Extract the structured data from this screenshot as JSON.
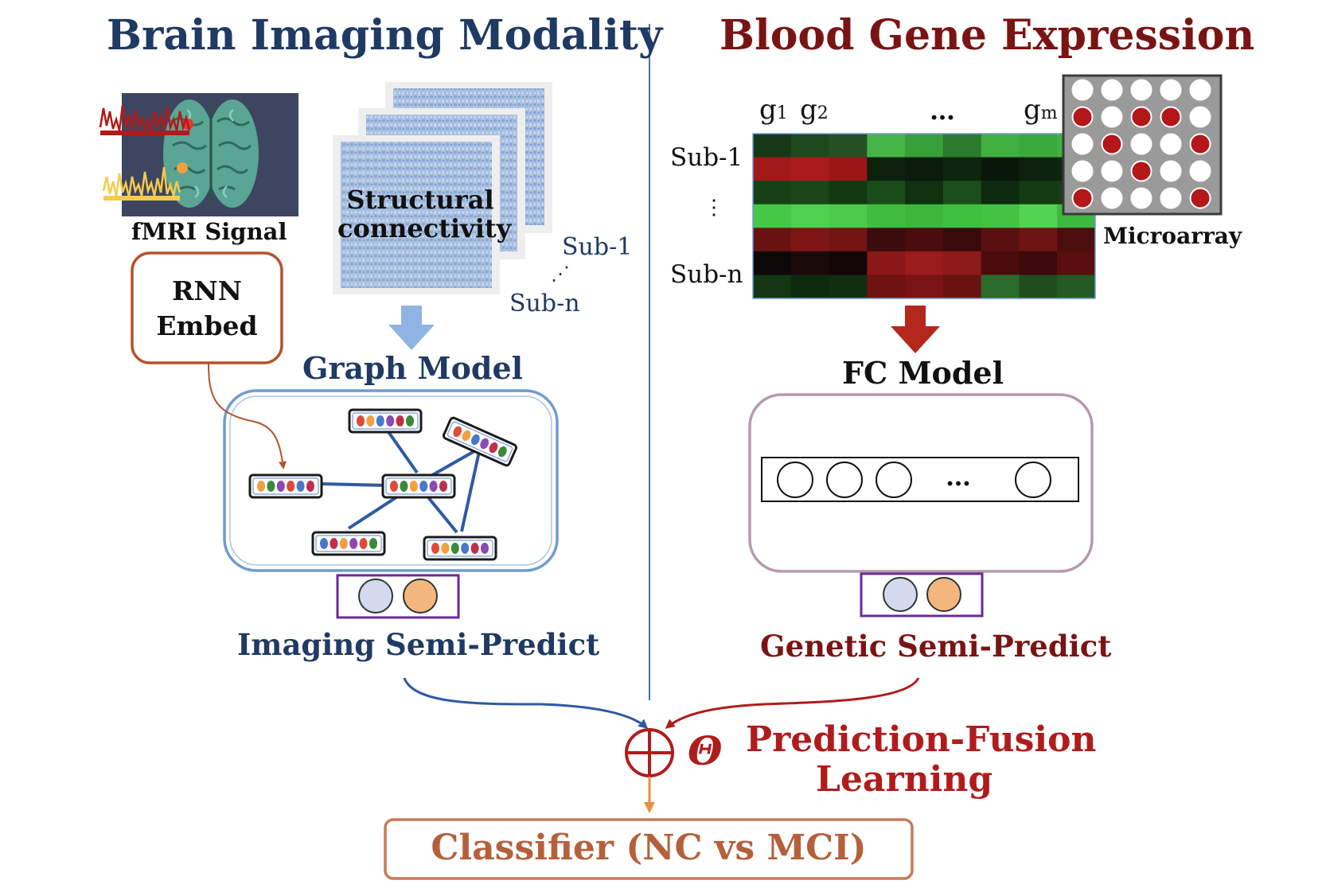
{
  "left_panel": {
    "title": "Brain Imaging Modality",
    "fmri_label": "fMRI Signal",
    "rnn_box": {
      "line1": "RNN",
      "line2": "Embed"
    },
    "sc_label": {
      "line1": "Structural",
      "line2": "connectivity"
    },
    "sub_first": "Sub-1",
    "sub_ellipsis": "⋰",
    "sub_last": "Sub-n",
    "graph_model_label": "Graph Model",
    "semi_predict_label": "Imaging Semi-Predict"
  },
  "right_panel": {
    "title": "Blood Gene Expression",
    "gene_labels": {
      "g1": "g",
      "g1_sub": "1",
      "g2": "g",
      "g2_sub": "2",
      "dots": "…",
      "gm": "g",
      "gm_sub": "m"
    },
    "row_labels": {
      "first": "Sub-1",
      "ellipsis": "⋮",
      "last": "Sub-n"
    },
    "microarray_label": "Microarray",
    "fc_model_label": "FC Model",
    "fc_dots": "…",
    "semi_predict_label": "Genetic Semi-Predict"
  },
  "fusion": {
    "theta": "Θ",
    "line1": "Prediction-Fusion",
    "line2": "Learning"
  },
  "classifier_label": "Classifier (NC vs MCI)",
  "colors": {
    "left_title": "#1f3a63",
    "right_title": "#7a1414",
    "fusion_red": "#b01c1c",
    "classifier_text": "#b5603a",
    "classifier_border": "#c87a55",
    "rnn_border": "#b5522a",
    "graph_box_border": "#6f9bd0",
    "fc_box_border": "#b59aaf",
    "pred_box_border": "#6a2a9a",
    "blue_circle": "#d3daf0",
    "orange_circle": "#f3b77e",
    "edge_blue": "#2f5aa5",
    "down_arrow_blue": "#8fb4e3",
    "down_arrow_red": "#b3271c",
    "orange_arrow": "#e8903a"
  },
  "heatmap": {
    "rows": [
      [
        "#163816",
        "#1e481e",
        "#245024",
        "#46b446",
        "#38a038",
        "#2c7a2c",
        "#40b040",
        "#3aa83a",
        "#44b044"
      ],
      [
        "#a31818",
        "#aa1a1a",
        "#9d1616",
        "#0c200c",
        "#0a1c0a",
        "#0e260e",
        "#081808",
        "#0c220c",
        "#0e260e"
      ],
      [
        "#164016",
        "#1a461a",
        "#123812",
        "#1a4c1a",
        "#103010",
        "#1c4e1c",
        "#0e2a0e",
        "#143a14",
        "#163e16"
      ],
      [
        "#45c845",
        "#50d050",
        "#4cca4c",
        "#40bc40",
        "#3cb63c",
        "#40c040",
        "#44c244",
        "#52d452",
        "#3eb83e"
      ],
      [
        "#6a1212",
        "#7e1616",
        "#741414",
        "#3c0c0c",
        "#4a0c0c",
        "#3a0a0a",
        "#5a1010",
        "#6e1414",
        "#4c0e0e"
      ],
      [
        "#0c0808",
        "#1a0a0a",
        "#120606",
        "#8a1818",
        "#9a1c1c",
        "#8c1a1a",
        "#4a0c0c",
        "#3c0a0a",
        "#5a0e0e"
      ],
      [
        "#143614",
        "#0e2a0e",
        "#102e10",
        "#6e1212",
        "#7a1414",
        "#681212",
        "#2a6a2a",
        "#1e4e1e",
        "#245a24"
      ]
    ]
  },
  "microarray": {
    "rows": [
      [
        0,
        0,
        0,
        0,
        0
      ],
      [
        1,
        0,
        1,
        1,
        0
      ],
      [
        0,
        1,
        0,
        0,
        1
      ],
      [
        0,
        0,
        1,
        0,
        0
      ],
      [
        1,
        0,
        0,
        0,
        1
      ]
    ]
  },
  "graph_nodes": [
    {
      "dots": [
        "#e04a3a",
        "#f0a040",
        "#4a78c8",
        "#8a4ab0",
        "#c0304a",
        "#3a8a3a"
      ]
    },
    {
      "dots": [
        "#e04a3a",
        "#f0a040",
        "#4a78c8",
        "#8a4ab0",
        "#c0304a",
        "#3a8a3a"
      ]
    },
    {
      "dots": [
        "#f0a040",
        "#3a8a3a",
        "#8a4ab0",
        "#e04a3a",
        "#4a78c8",
        "#c0304a"
      ]
    },
    {
      "dots": [
        "#e04a3a",
        "#3a8a3a",
        "#f0a040",
        "#4a78c8",
        "#8a4ab0",
        "#c0304a"
      ]
    },
    {
      "dots": [
        "#4a78c8",
        "#c0304a",
        "#f0a040",
        "#8a4ab0",
        "#e04a3a",
        "#3a8a3a"
      ]
    },
    {
      "dots": [
        "#e04a3a",
        "#f0a040",
        "#3a8a3a",
        "#4a78c8",
        "#c0304a",
        "#8a4ab0"
      ]
    }
  ]
}
